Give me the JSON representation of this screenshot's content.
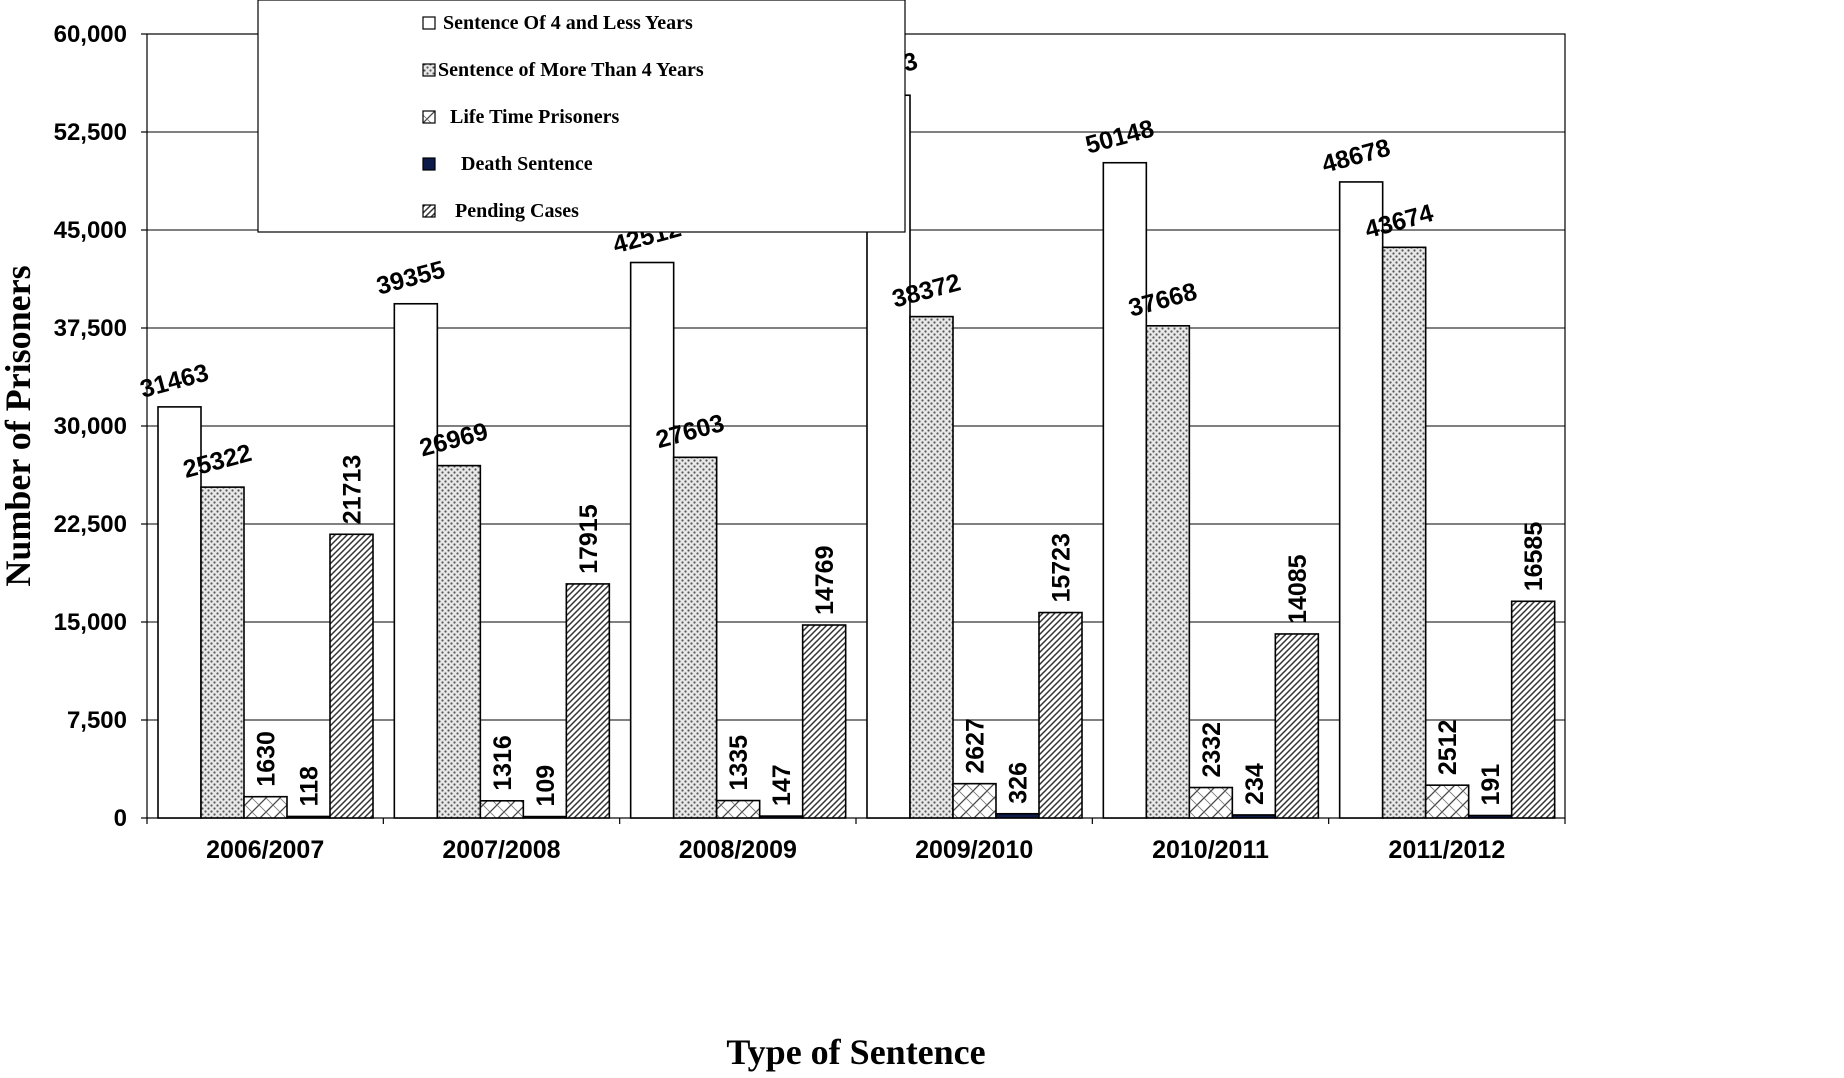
{
  "chart_data": {
    "type": "bar",
    "xlabel": "Type of Sentence",
    "ylabel": "Number of Prisoners",
    "ylim": [
      0,
      60000
    ],
    "yticks": [
      0,
      7500,
      15000,
      22500,
      30000,
      37500,
      45000,
      52500,
      60000
    ],
    "ytick_labels": [
      "0",
      "7,500",
      "15,000",
      "22,500",
      "30,000",
      "37,500",
      "45,000",
      "52,500",
      "60,000"
    ],
    "grid": "horizontal",
    "legend_position": "top-left",
    "categories": [
      "2006/2007",
      "2007/2008",
      "2008/2009",
      "2009/2010",
      "2010/2011",
      "2011/2012"
    ],
    "series": [
      {
        "name": "Sentence Of 4 and Less Years",
        "values": [
          31463,
          39355,
          42512,
          55313,
          50148,
          48678
        ],
        "fill": "white"
      },
      {
        "name": "Sentence of More Than 4 Years",
        "values": [
          25322,
          26969,
          27603,
          38372,
          37668,
          43674
        ],
        "fill": "dots"
      },
      {
        "name": "Life Time  Prisoners",
        "values": [
          1630,
          1316,
          1335,
          2627,
          2332,
          2512
        ],
        "fill": "wide-diagonal"
      },
      {
        "name": "Death Sentence",
        "values": [
          118,
          109,
          147,
          326,
          234,
          191
        ],
        "fill": "#0d1b4b"
      },
      {
        "name": "Pending Cases",
        "values": [
          21713,
          17915,
          14769,
          15723,
          14085,
          16585
        ],
        "fill": "dense-diagonal"
      }
    ]
  }
}
